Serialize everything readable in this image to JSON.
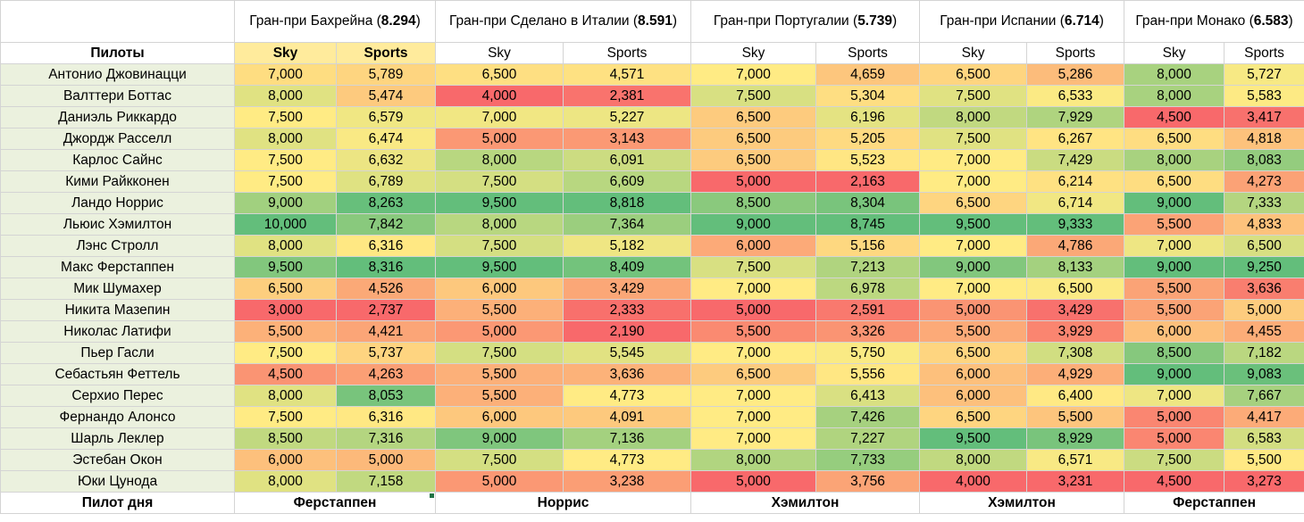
{
  "header": {
    "drivers_label": "Пилоты",
    "sky_label": "Sky",
    "sports_label": "Sports"
  },
  "races": [
    {
      "name": "Гран-при Бахрейна",
      "score": "8.294"
    },
    {
      "name": "Гран-при Сделано в Италии",
      "score": "8.591"
    },
    {
      "name": "Гран-при Португалии",
      "score": "5.739"
    },
    {
      "name": "Гран-при Испании",
      "score": "6.714"
    },
    {
      "name": "Гран-при Монако",
      "score": "6.583"
    }
  ],
  "drivers": [
    {
      "name": "Антонио Джовинацци",
      "values": [
        "7,000",
        "5,789",
        "6,500",
        "4,571",
        "7,000",
        "4,659",
        "6,500",
        "5,286",
        "8,000",
        "5,727"
      ]
    },
    {
      "name": "Валттери Боттас",
      "values": [
        "8,000",
        "5,474",
        "4,000",
        "2,381",
        "7,500",
        "5,304",
        "7,500",
        "6,533",
        "8,000",
        "5,583"
      ]
    },
    {
      "name": "Даниэль Риккардо",
      "values": [
        "7,500",
        "6,579",
        "7,000",
        "5,227",
        "6,500",
        "6,196",
        "8,000",
        "7,929",
        "4,500",
        "3,417"
      ]
    },
    {
      "name": "Джордж Расселл",
      "values": [
        "8,000",
        "6,474",
        "5,000",
        "3,143",
        "6,500",
        "5,205",
        "7,500",
        "6,267",
        "6,500",
        "4,818"
      ]
    },
    {
      "name": "Карлос Сайнс",
      "values": [
        "7,500",
        "6,632",
        "8,000",
        "6,091",
        "6,500",
        "5,523",
        "7,000",
        "7,429",
        "8,000",
        "8,083"
      ]
    },
    {
      "name": "Кими Райкконен",
      "values": [
        "7,500",
        "6,789",
        "7,500",
        "6,609",
        "5,000",
        "2,163",
        "7,000",
        "6,214",
        "6,500",
        "4,273"
      ]
    },
    {
      "name": "Ландо Норрис",
      "values": [
        "9,000",
        "8,263",
        "9,500",
        "8,818",
        "8,500",
        "8,304",
        "6,500",
        "6,714",
        "9,000",
        "7,333"
      ]
    },
    {
      "name": "Льюис Хэмилтон",
      "values": [
        "10,000",
        "7,842",
        "8,000",
        "7,364",
        "9,000",
        "8,745",
        "9,500",
        "9,333",
        "5,500",
        "4,833"
      ]
    },
    {
      "name": "Лэнс Стролл",
      "values": [
        "8,000",
        "6,316",
        "7,500",
        "5,182",
        "6,000",
        "5,156",
        "7,000",
        "4,786",
        "7,000",
        "6,500"
      ]
    },
    {
      "name": "Макс Ферстаппен",
      "values": [
        "9,500",
        "8,316",
        "9,500",
        "8,409",
        "7,500",
        "7,213",
        "9,000",
        "8,133",
        "9,000",
        "9,250"
      ]
    },
    {
      "name": "Мик Шумахер",
      "values": [
        "6,500",
        "4,526",
        "6,000",
        "3,429",
        "7,000",
        "6,978",
        "7,000",
        "6,500",
        "5,500",
        "3,636"
      ]
    },
    {
      "name": "Никита Мазепин",
      "values": [
        "3,000",
        "2,737",
        "5,500",
        "2,333",
        "5,000",
        "2,591",
        "5,000",
        "3,429",
        "5,500",
        "5,000"
      ]
    },
    {
      "name": "Николас Латифи",
      "values": [
        "5,500",
        "4,421",
        "5,000",
        "2,190",
        "5,500",
        "3,326",
        "5,500",
        "3,929",
        "6,000",
        "4,455"
      ]
    },
    {
      "name": "Пьер Гасли",
      "values": [
        "7,500",
        "5,737",
        "7,500",
        "5,545",
        "7,000",
        "5,750",
        "6,500",
        "7,308",
        "8,500",
        "7,182"
      ]
    },
    {
      "name": "Себастьян Феттель",
      "values": [
        "4,500",
        "4,263",
        "5,500",
        "3,636",
        "6,500",
        "5,556",
        "6,000",
        "4,929",
        "9,000",
        "9,083"
      ]
    },
    {
      "name": "Серхио Перес",
      "values": [
        "8,000",
        "8,053",
        "5,500",
        "4,773",
        "7,000",
        "6,413",
        "6,000",
        "6,400",
        "7,000",
        "7,667"
      ]
    },
    {
      "name": "Фернандо Алонсо",
      "values": [
        "7,500",
        "6,316",
        "6,000",
        "4,091",
        "7,000",
        "7,426",
        "6,500",
        "5,500",
        "5,000",
        "4,417"
      ]
    },
    {
      "name": "Шарль Леклер",
      "values": [
        "8,500",
        "7,316",
        "9,000",
        "7,136",
        "7,000",
        "7,227",
        "9,500",
        "8,929",
        "5,000",
        "6,583"
      ]
    },
    {
      "name": "Эстебан Окон",
      "values": [
        "6,000",
        "5,000",
        "7,500",
        "4,773",
        "8,000",
        "7,733",
        "8,000",
        "6,571",
        "7,500",
        "5,500"
      ]
    },
    {
      "name": "Юки Цунода",
      "values": [
        "8,000",
        "7,158",
        "5,000",
        "3,238",
        "5,000",
        "3,756",
        "4,000",
        "3,231",
        "4,500",
        "3,273"
      ]
    }
  ],
  "footer": {
    "label": "Пилот дня",
    "winners": [
      "Ферстаппен",
      "Норрис",
      "Хэмилтон",
      "Хэмилтон",
      "Ферстаппен"
    ]
  },
  "colors": {
    "scale_low": "#f8696b",
    "scale_mid": "#ffeb84",
    "scale_high": "#63be7b",
    "driver_bg": "#ebf1de",
    "header_highlight": "#ffeb9c",
    "grid_line": "#d4d4d4"
  }
}
